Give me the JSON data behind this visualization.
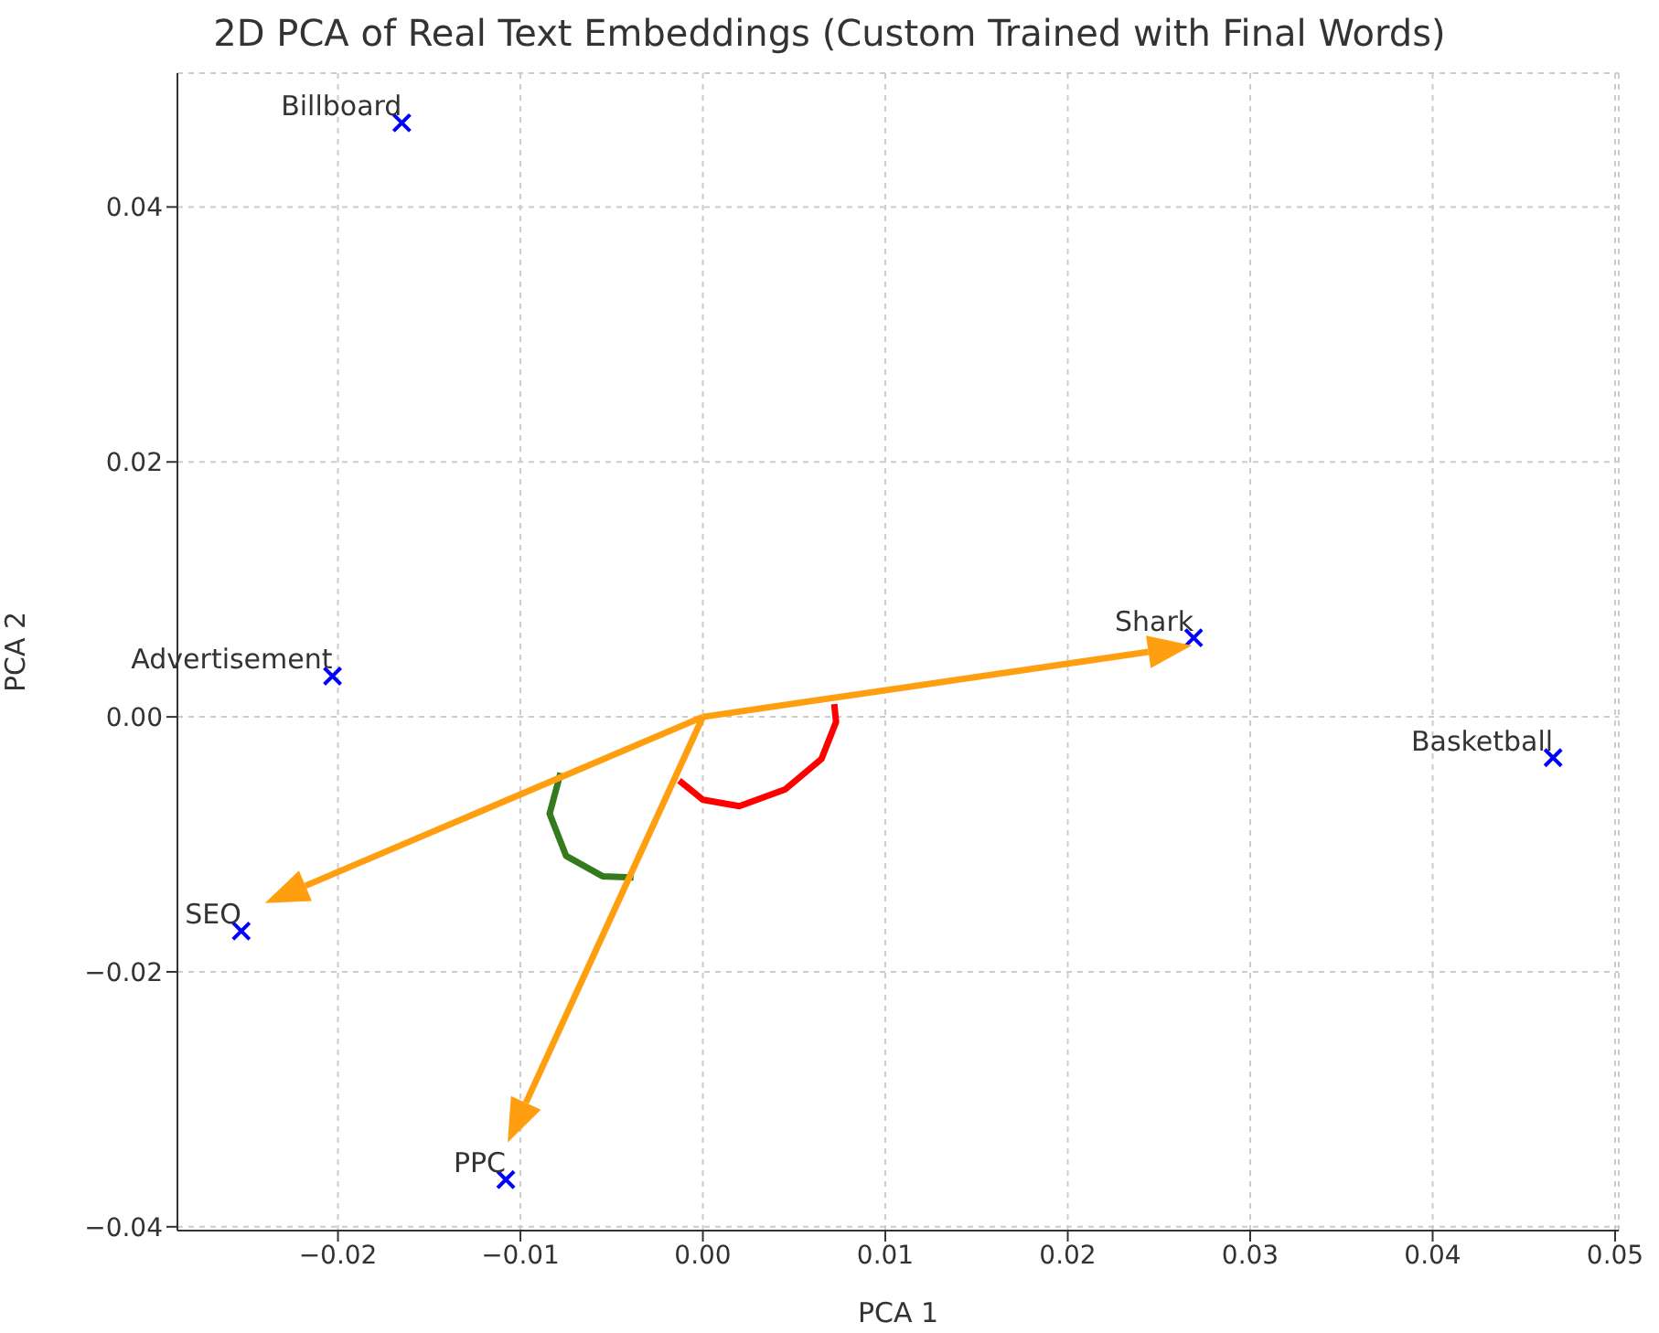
{
  "chart_data": {
    "type": "scatter",
    "title": "2D PCA of Real Text Embeddings (Custom Trained with Final Words)",
    "xlabel": "PCA 1",
    "ylabel": "PCA 2",
    "xlim": [
      -0.0288,
      0.0502
    ],
    "ylim": [
      -0.0403,
      0.0505
    ],
    "xticks": [
      {
        "value": -0.02,
        "label": "−0.02"
      },
      {
        "value": -0.01,
        "label": "−0.01"
      },
      {
        "value": 0,
        "label": "0.00"
      },
      {
        "value": 0.01,
        "label": "0.01"
      },
      {
        "value": 0.02,
        "label": "0.02"
      },
      {
        "value": 0.03,
        "label": "0.03"
      },
      {
        "value": 0.04,
        "label": "0.04"
      },
      {
        "value": 0.05,
        "label": "0.05"
      }
    ],
    "yticks": [
      {
        "value": -0.04,
        "label": "−0.04"
      },
      {
        "value": -0.02,
        "label": "−0.02"
      },
      {
        "value": 0,
        "label": "0.00"
      },
      {
        "value": 0.02,
        "label": "0.02"
      },
      {
        "value": 0.04,
        "label": "0.04"
      }
    ],
    "grid": true,
    "series": [
      {
        "color": "#0000ff",
        "marker": "cross",
        "x": [
          -0.0165,
          -0.0203,
          0.0269,
          0.0466,
          -0.0253,
          -0.0108
        ],
        "values": [
          0.0466,
          0.0032,
          0.0062,
          -0.0032,
          -0.0168,
          -0.0363
        ]
      },
      {
        "type": "line",
        "color": "#ff0000",
        "marker": "none",
        "x": [
          -0.0013,
          0,
          0.002,
          0.0045,
          0.0065,
          0.0073,
          0.0072
        ],
        "values": [
          -0.005,
          -0.0065,
          -0.007,
          -0.0057,
          -0.0033,
          -0.0004,
          0.001
        ]
      },
      {
        "type": "line",
        "color": "#347a1e",
        "marker": "none",
        "x": [
          -0.0078,
          -0.0084,
          -0.0075,
          -0.0055,
          -0.0038
        ],
        "values": [
          -0.0044,
          -0.0076,
          -0.0109,
          -0.0125,
          -0.0126
        ]
      }
    ],
    "annotations": [
      {
        "text": "Billboard",
        "x": -0.0165,
        "y": 0.0466
      },
      {
        "text": "Advertisement",
        "x": -0.0203,
        "y": 0.0032
      },
      {
        "text": "Shark",
        "x": 0.0269,
        "y": 0.0062
      },
      {
        "text": "Basketball",
        "x": 0.0466,
        "y": -0.0032
      },
      {
        "text": "SEO",
        "x": -0.0253,
        "y": -0.0168
      },
      {
        "text": "PPC",
        "x": -0.0108,
        "y": -0.0363
      }
    ]
  }
}
